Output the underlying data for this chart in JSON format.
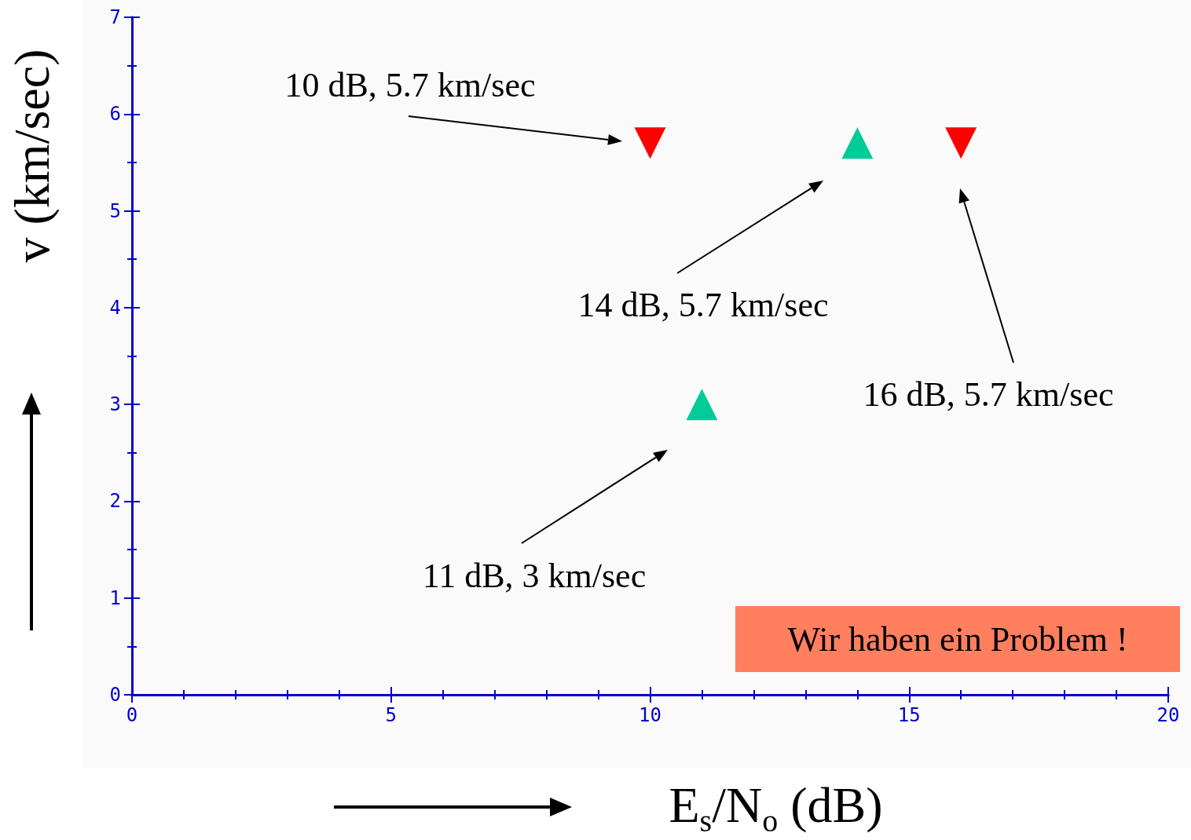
{
  "chart_data": {
    "type": "scatter",
    "xlabel": "E$_{s}$/N$_{o}$ (dB)",
    "ylabel": "v (km/sec)",
    "xlim": [
      0,
      20
    ],
    "xticks": [
      0,
      5,
      10,
      15,
      20
    ],
    "ylim": [
      0,
      7
    ],
    "yticks": [
      0,
      1,
      2,
      3,
      4,
      5,
      6,
      7
    ],
    "grid": false,
    "series": [
      {
        "color": "#ff0000",
        "marker": "triangle",
        "x": [
          10,
          16
        ],
        "values": [
          5.7,
          5.7
        ]
      },
      {
        "color": "#00cc99",
        "marker": "triangle",
        "x": [
          11,
          14
        ],
        "values": [
          3,
          5.7
        ]
      }
    ],
    "annotations": [
      "10 dB, 5.7 km/sec",
      "14 dB, 5.7 km/sec",
      "16 dB, 5.7 km/sec",
      "11 dB, 3 km/sec",
      "Wir haben ein Problem !"
    ]
  }
}
